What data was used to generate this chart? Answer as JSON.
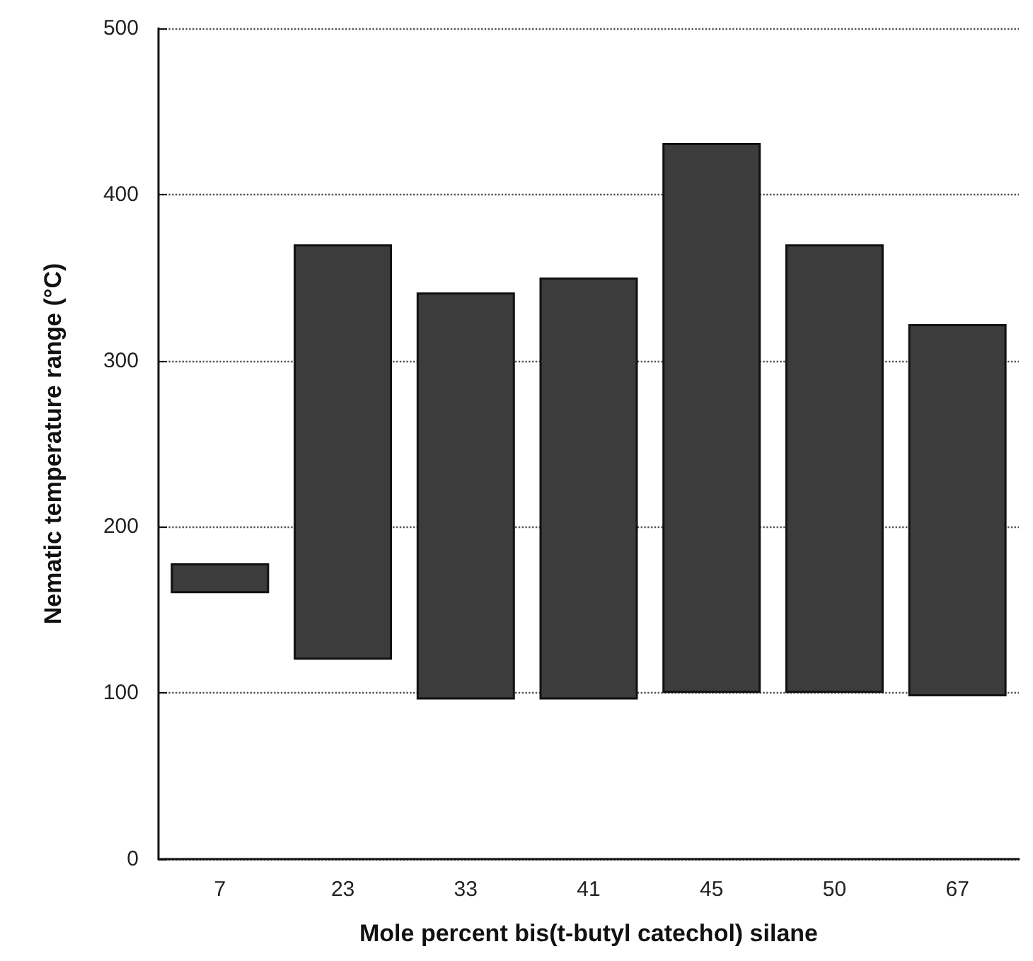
{
  "chart_data": {
    "type": "bar",
    "xlabel": "Mole percent bis(t-butyl catechol) silane",
    "ylabel": "Nematic temperature range (°C)",
    "categories": [
      "7",
      "23",
      "33",
      "41",
      "45",
      "50",
      "67"
    ],
    "base": [
      160,
      120,
      96,
      96,
      100,
      100,
      98
    ],
    "values": [
      18,
      250,
      245,
      254,
      331,
      270,
      224
    ],
    "color": "#3c3c3c",
    "ylim": [
      0,
      500
    ],
    "yticks": [
      0,
      100,
      200,
      300,
      400,
      500
    ],
    "grid": "y"
  }
}
